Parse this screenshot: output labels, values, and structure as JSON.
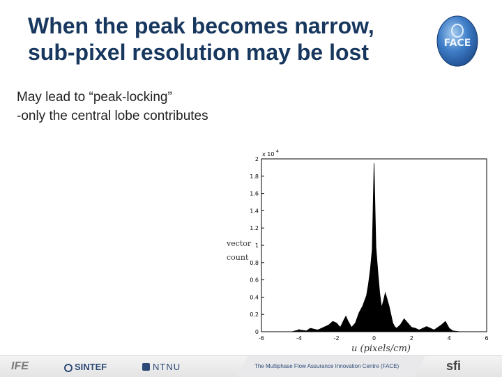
{
  "slide": {
    "title_line1": "When the peak becomes narrow,",
    "title_line2": "sub-pixel resolution may be lost",
    "bullet1": "May lead to “peak-locking”",
    "bullet2": "-only the central lobe contributes"
  },
  "logo": {
    "text": "FACE",
    "colors": {
      "ring": "#1f4d8f",
      "inner": "#3f7ec8",
      "highlight": "#a9cdf0"
    }
  },
  "footer": {
    "ife": "IFE",
    "sintef": "SINTEF",
    "ntnu": "NTNU",
    "center": "The Multiphase Flow Assurance Innovation Centre (FACE)",
    "sfi": "sfi"
  },
  "chart_data": {
    "type": "area",
    "xlabel": "u (pixels/cm)",
    "ylabel": "vector count",
    "y_multiplier": "x 10",
    "y_multiplier_exp": "4",
    "xlim": [
      -6,
      6
    ],
    "ylim": [
      0,
      2
    ],
    "xticks": [
      "-6",
      "-4",
      "-2",
      "0",
      "2",
      "4",
      "6"
    ],
    "yticks": [
      "0",
      "0.2",
      "0.4",
      "0.6",
      "0.8",
      "1",
      "1.2",
      "1.4",
      "1.6",
      "1.8",
      "2"
    ],
    "x": [
      -6,
      -4.4,
      -4.0,
      -3.6,
      -3.4,
      -3.0,
      -2.6,
      -2.4,
      -2.2,
      -2.0,
      -1.8,
      -1.6,
      -1.5,
      -1.4,
      -1.2,
      -1.0,
      -0.8,
      -0.6,
      -0.4,
      -0.3,
      -0.2,
      -0.1,
      0.0,
      0.1,
      0.2,
      0.3,
      0.4,
      0.5,
      0.6,
      0.8,
      1.0,
      1.1,
      1.2,
      1.4,
      1.6,
      1.8,
      2.0,
      2.2,
      2.4,
      2.8,
      3.2,
      3.6,
      3.8,
      4.0,
      4.2,
      4.6,
      6
    ],
    "y": [
      0,
      0,
      0.02,
      0.01,
      0.04,
      0.02,
      0.06,
      0.08,
      0.12,
      0.1,
      0.05,
      0.14,
      0.18,
      0.13,
      0.05,
      0.1,
      0.22,
      0.3,
      0.42,
      0.55,
      0.72,
      0.95,
      1.95,
      0.98,
      0.7,
      0.45,
      0.28,
      0.36,
      0.45,
      0.3,
      0.1,
      0.06,
      0.04,
      0.08,
      0.15,
      0.1,
      0.05,
      0.04,
      0.02,
      0.06,
      0.02,
      0.08,
      0.12,
      0.04,
      0.01,
      0,
      0
    ],
    "colors": {
      "fill": "#000000"
    }
  }
}
